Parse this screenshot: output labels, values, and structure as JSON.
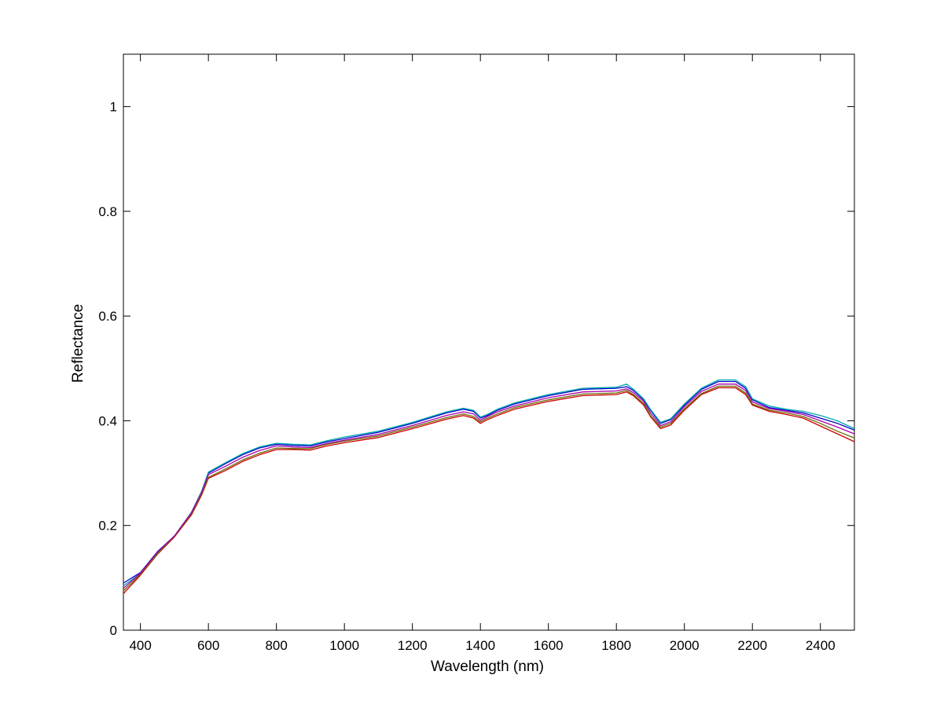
{
  "chart_data": {
    "type": "line",
    "title": "",
    "xlabel": "Wavelength (nm)",
    "ylabel": "Reflectance",
    "xlim": [
      350,
      2500
    ],
    "ylim": [
      0,
      1.1
    ],
    "xticks": [
      400,
      600,
      800,
      1000,
      1200,
      1400,
      1600,
      1800,
      2000,
      2200,
      2400
    ],
    "yticks": [
      0,
      0.2,
      0.4,
      0.6,
      0.8,
      1
    ],
    "ytick_labels": [
      "0",
      "0.2",
      "0.4",
      "0.6",
      "0.8",
      "1"
    ],
    "grid": false,
    "legend": "none",
    "x": [
      350,
      400,
      450,
      500,
      550,
      580,
      600,
      650,
      700,
      750,
      800,
      850,
      900,
      950,
      1000,
      1100,
      1200,
      1300,
      1350,
      1380,
      1400,
      1420,
      1450,
      1500,
      1600,
      1700,
      1800,
      1830,
      1850,
      1880,
      1900,
      1930,
      1960,
      2000,
      2050,
      2100,
      2150,
      2180,
      2200,
      2250,
      2300,
      2350,
      2400,
      2450,
      2500
    ],
    "series": [
      {
        "color": "#0000cc",
        "values": [
          0.09,
          0.11,
          0.15,
          0.18,
          0.225,
          0.265,
          0.3,
          0.318,
          0.335,
          0.348,
          0.355,
          0.353,
          0.352,
          0.36,
          0.366,
          0.378,
          0.395,
          0.415,
          0.422,
          0.418,
          0.405,
          0.41,
          0.42,
          0.432,
          0.448,
          0.46,
          0.462,
          0.465,
          0.458,
          0.44,
          0.42,
          0.395,
          0.402,
          0.43,
          0.46,
          0.475,
          0.475,
          0.462,
          0.44,
          0.425,
          0.42,
          0.415,
          0.405,
          0.395,
          0.382
        ]
      },
      {
        "color": "#00aaaa",
        "values": [
          0.085,
          0.108,
          0.148,
          0.18,
          0.225,
          0.265,
          0.302,
          0.32,
          0.337,
          0.35,
          0.357,
          0.355,
          0.354,
          0.362,
          0.369,
          0.38,
          0.397,
          0.417,
          0.424,
          0.42,
          0.407,
          0.412,
          0.422,
          0.434,
          0.45,
          0.462,
          0.464,
          0.47,
          0.46,
          0.442,
          0.422,
          0.397,
          0.404,
          0.432,
          0.462,
          0.478,
          0.478,
          0.465,
          0.442,
          0.428,
          0.422,
          0.418,
          0.41,
          0.4,
          0.385
        ]
      },
      {
        "color": "#cc0000",
        "values": [
          0.07,
          0.105,
          0.145,
          0.178,
          0.22,
          0.258,
          0.29,
          0.305,
          0.322,
          0.335,
          0.345,
          0.345,
          0.344,
          0.352,
          0.358,
          0.368,
          0.385,
          0.403,
          0.41,
          0.405,
          0.395,
          0.402,
          0.41,
          0.422,
          0.437,
          0.448,
          0.45,
          0.455,
          0.448,
          0.43,
          0.408,
          0.385,
          0.392,
          0.42,
          0.45,
          0.463,
          0.463,
          0.45,
          0.43,
          0.418,
          0.412,
          0.405,
          0.39,
          0.375,
          0.36
        ]
      },
      {
        "color": "#6a6a00",
        "values": [
          0.075,
          0.107,
          0.146,
          0.179,
          0.222,
          0.26,
          0.292,
          0.308,
          0.325,
          0.338,
          0.348,
          0.347,
          0.347,
          0.355,
          0.361,
          0.371,
          0.388,
          0.406,
          0.413,
          0.408,
          0.398,
          0.405,
          0.413,
          0.425,
          0.44,
          0.451,
          0.453,
          0.458,
          0.45,
          0.433,
          0.41,
          0.388,
          0.395,
          0.423,
          0.452,
          0.466,
          0.466,
          0.453,
          0.432,
          0.42,
          0.415,
          0.408,
          0.395,
          0.38,
          0.367
        ]
      },
      {
        "color": "#aa00aa",
        "values": [
          0.08,
          0.109,
          0.149,
          0.18,
          0.224,
          0.263,
          0.297,
          0.313,
          0.33,
          0.343,
          0.352,
          0.35,
          0.349,
          0.357,
          0.363,
          0.374,
          0.391,
          0.41,
          0.417,
          0.413,
          0.401,
          0.408,
          0.417,
          0.428,
          0.444,
          0.455,
          0.457,
          0.461,
          0.454,
          0.437,
          0.415,
          0.391,
          0.398,
          0.427,
          0.456,
          0.47,
          0.47,
          0.458,
          0.436,
          0.423,
          0.418,
          0.412,
          0.4,
          0.388,
          0.375
        ]
      }
    ]
  }
}
